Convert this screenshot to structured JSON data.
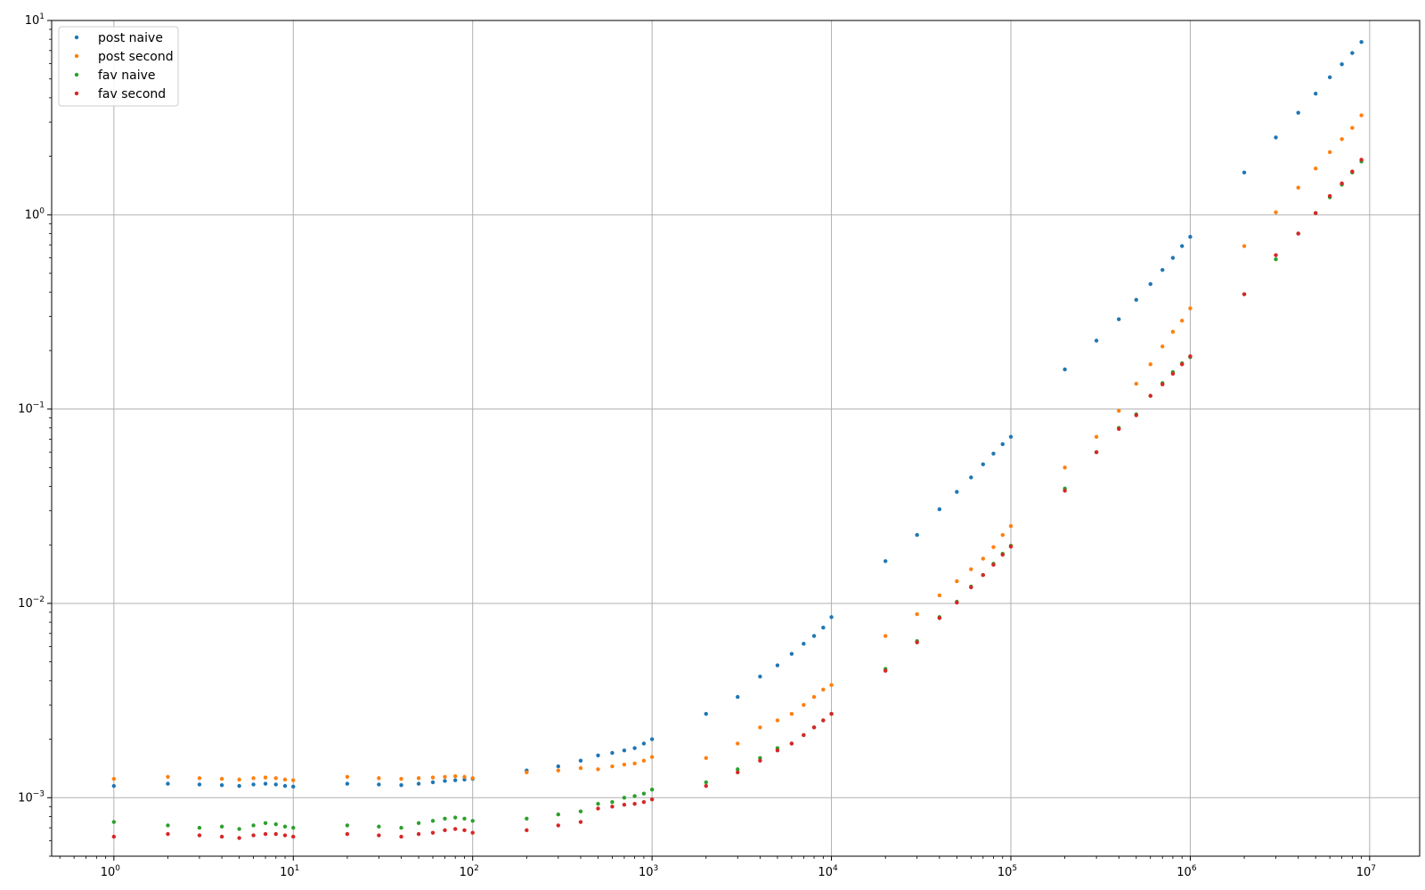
{
  "chart_data": {
    "type": "scatter",
    "title": "",
    "xlabel": "",
    "ylabel": "",
    "xscale": "log",
    "yscale": "log",
    "xlim": [
      0.45,
      19000000
    ],
    "ylim": [
      0.0005,
      10
    ],
    "grid": true,
    "legend_position": "top-left",
    "x_ticks": [
      {
        "value": 1,
        "base": "10",
        "exp": "0"
      },
      {
        "value": 10,
        "base": "10",
        "exp": "1"
      },
      {
        "value": 100,
        "base": "10",
        "exp": "2"
      },
      {
        "value": 1000,
        "base": "10",
        "exp": "3"
      },
      {
        "value": 10000,
        "base": "10",
        "exp": "4"
      },
      {
        "value": 100000,
        "base": "10",
        "exp": "5"
      },
      {
        "value": 1000000,
        "base": "10",
        "exp": "6"
      },
      {
        "value": 10000000,
        "base": "10",
        "exp": "7"
      }
    ],
    "y_ticks": [
      {
        "value": 0.001,
        "base": "10",
        "exp": "−3"
      },
      {
        "value": 0.01,
        "base": "10",
        "exp": "−2"
      },
      {
        "value": 0.1,
        "base": "10",
        "exp": "−1"
      },
      {
        "value": 1,
        "base": "10",
        "exp": "0"
      },
      {
        "value": 10,
        "base": "10",
        "exp": "1"
      }
    ],
    "x": [
      1,
      2,
      3,
      4,
      5,
      6,
      7,
      8,
      9,
      10,
      20,
      30,
      40,
      50,
      60,
      70,
      80,
      90,
      100,
      200,
      300,
      400,
      500,
      600,
      700,
      800,
      900,
      1000,
      2000,
      3000,
      4000,
      5000,
      6000,
      7000,
      8000,
      9000,
      10000,
      20000,
      30000,
      40000,
      50000,
      60000,
      70000,
      80000,
      90000,
      100000,
      200000,
      300000,
      400000,
      500000,
      600000,
      700000,
      800000,
      900000,
      1000000,
      2000000,
      3000000,
      4000000,
      5000000,
      6000000,
      7000000,
      8000000,
      9000000
    ],
    "series": [
      {
        "name": "post naive",
        "color": "#1f77b4",
        "values": [
          0.00115,
          0.00118,
          0.00117,
          0.00116,
          0.00115,
          0.00117,
          0.00118,
          0.00117,
          0.00115,
          0.00114,
          0.00118,
          0.00117,
          0.00116,
          0.00118,
          0.0012,
          0.00122,
          0.00123,
          0.00124,
          0.00125,
          0.00138,
          0.00145,
          0.00155,
          0.00165,
          0.0017,
          0.00175,
          0.0018,
          0.0019,
          0.002,
          0.0027,
          0.0033,
          0.0042,
          0.0048,
          0.0055,
          0.0062,
          0.0068,
          0.0075,
          0.0085,
          0.0165,
          0.0225,
          0.0305,
          0.0375,
          0.0445,
          0.052,
          0.059,
          0.066,
          0.072,
          0.16,
          0.225,
          0.29,
          0.365,
          0.44,
          0.52,
          0.6,
          0.69,
          0.77,
          1.65,
          2.5,
          3.35,
          4.2,
          5.1,
          5.95,
          6.8,
          7.75
        ]
      },
      {
        "name": "post second",
        "color": "#ff7f0e",
        "values": [
          0.00125,
          0.00128,
          0.00126,
          0.00125,
          0.00124,
          0.00126,
          0.00127,
          0.00126,
          0.00124,
          0.00123,
          0.00128,
          0.00126,
          0.00125,
          0.00126,
          0.00127,
          0.00128,
          0.00129,
          0.00128,
          0.00126,
          0.00135,
          0.00138,
          0.00142,
          0.0014,
          0.00145,
          0.00148,
          0.0015,
          0.00155,
          0.00162,
          0.0016,
          0.0019,
          0.0023,
          0.0025,
          0.0027,
          0.003,
          0.0033,
          0.0036,
          0.0038,
          0.0068,
          0.0088,
          0.011,
          0.013,
          0.015,
          0.017,
          0.0195,
          0.0225,
          0.025,
          0.05,
          0.072,
          0.098,
          0.135,
          0.17,
          0.21,
          0.25,
          0.285,
          0.33,
          0.69,
          1.03,
          1.38,
          1.73,
          2.1,
          2.45,
          2.8,
          3.25
        ]
      },
      {
        "name": "fav naive",
        "color": "#2ca02c",
        "values": [
          0.00075,
          0.00072,
          0.0007,
          0.00071,
          0.00069,
          0.00072,
          0.00074,
          0.00073,
          0.00071,
          0.0007,
          0.00072,
          0.00071,
          0.0007,
          0.00074,
          0.00076,
          0.00078,
          0.00079,
          0.00078,
          0.00076,
          0.00078,
          0.00082,
          0.00085,
          0.00093,
          0.00095,
          0.001,
          0.00102,
          0.00105,
          0.0011,
          0.0012,
          0.0014,
          0.0016,
          0.0018,
          0.0019,
          0.0021,
          0.0023,
          0.0025,
          0.0027,
          0.0046,
          0.0064,
          0.0085,
          0.0102,
          0.0122,
          0.014,
          0.016,
          0.018,
          0.0198,
          0.039,
          0.06,
          0.08,
          0.094,
          0.117,
          0.136,
          0.155,
          0.172,
          0.185,
          0.39,
          0.59,
          0.8,
          1.02,
          1.23,
          1.43,
          1.65,
          1.88
        ]
      },
      {
        "name": "fav second",
        "color": "#d62728",
        "values": [
          0.00063,
          0.00065,
          0.00064,
          0.00063,
          0.00062,
          0.00064,
          0.00065,
          0.00065,
          0.00064,
          0.00063,
          0.00065,
          0.00064,
          0.00063,
          0.00065,
          0.00066,
          0.00068,
          0.00069,
          0.00068,
          0.00066,
          0.00068,
          0.00072,
          0.00075,
          0.00088,
          0.0009,
          0.00092,
          0.00093,
          0.00095,
          0.00098,
          0.00115,
          0.00135,
          0.00155,
          0.00175,
          0.0019,
          0.0021,
          0.0023,
          0.0025,
          0.0027,
          0.0045,
          0.0063,
          0.0084,
          0.0101,
          0.0121,
          0.014,
          0.0158,
          0.0178,
          0.0196,
          0.038,
          0.06,
          0.079,
          0.093,
          0.117,
          0.134,
          0.152,
          0.17,
          0.187,
          0.39,
          0.62,
          0.8,
          1.02,
          1.25,
          1.45,
          1.67,
          1.92
        ]
      }
    ]
  }
}
